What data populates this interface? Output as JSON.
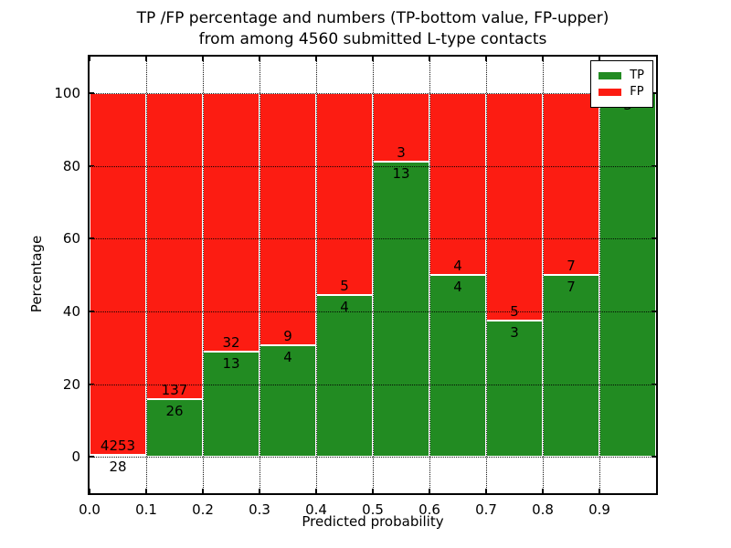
{
  "figure": {
    "title_line1": "TP /FP percentage and numbers (TP-bottom value, FP-upper)",
    "title_line2": "from among 4560 submitted L-type contacts",
    "xlabel": "Predicted probability",
    "ylabel": "Percentage"
  },
  "legend": {
    "items": [
      {
        "label": "TP",
        "color": "#228b22"
      },
      {
        "label": "FP",
        "color": "#fc1c12"
      }
    ]
  },
  "chart_data": {
    "type": "bar",
    "stacked": true,
    "title": "TP /FP percentage and numbers (TP-bottom value, FP-upper) from among 4560 submitted L-type contacts",
    "xlabel": "Predicted probability",
    "ylabel": "Percentage",
    "xlim": [
      0.0,
      1.0
    ],
    "ylim": [
      -10,
      110
    ],
    "grid": "dotted",
    "legend_position": "upper right",
    "total_submitted": 4560,
    "x_tick_labels": [
      "0.0",
      "0.1",
      "0.2",
      "0.3",
      "0.4",
      "0.5",
      "0.6",
      "0.7",
      "0.8",
      "0.9"
    ],
    "x_tick_values": [
      0.0,
      0.1,
      0.2,
      0.3,
      0.4,
      0.5,
      0.6,
      0.7,
      0.8,
      0.9
    ],
    "y_tick_labels": [
      "0",
      "20",
      "40",
      "60",
      "80",
      "100"
    ],
    "y_tick_values": [
      0,
      20,
      40,
      60,
      80,
      100
    ],
    "colors": {
      "tp": "#228b22",
      "fp": "#fc1c12"
    },
    "bin_width": 0.1,
    "series": [
      {
        "name": "TP",
        "counts": [
          28,
          26,
          13,
          4,
          4,
          13,
          4,
          3,
          7,
          3
        ]
      },
      {
        "name": "FP",
        "counts": [
          4253,
          137,
          32,
          9,
          5,
          3,
          4,
          5,
          7,
          0
        ]
      }
    ],
    "bins": [
      {
        "x0": 0.0,
        "x1": 0.1,
        "tp_pct": 0.65,
        "tp_label": "28",
        "fp_label": "4253"
      },
      {
        "x0": 0.1,
        "x1": 0.2,
        "tp_pct": 15.95,
        "tp_label": "26",
        "fp_label": "137"
      },
      {
        "x0": 0.2,
        "x1": 0.3,
        "tp_pct": 28.89,
        "tp_label": "13",
        "fp_label": "32"
      },
      {
        "x0": 0.3,
        "x1": 0.4,
        "tp_pct": 30.77,
        "tp_label": "4",
        "fp_label": "9"
      },
      {
        "x0": 0.4,
        "x1": 0.5,
        "tp_pct": 44.44,
        "tp_label": "4",
        "fp_label": "5"
      },
      {
        "x0": 0.5,
        "x1": 0.6,
        "tp_pct": 81.25,
        "tp_label": "13",
        "fp_label": "3"
      },
      {
        "x0": 0.6,
        "x1": 0.7,
        "tp_pct": 50.0,
        "tp_label": "4",
        "fp_label": "4"
      },
      {
        "x0": 0.7,
        "x1": 0.8,
        "tp_pct": 37.5,
        "tp_label": "3",
        "fp_label": "5"
      },
      {
        "x0": 0.8,
        "x1": 0.9,
        "tp_pct": 50.0,
        "tp_label": "7",
        "fp_label": "7"
      },
      {
        "x0": 0.9,
        "x1": 1.0,
        "tp_pct": 100.0,
        "tp_label": "3",
        "fp_label": null
      }
    ]
  }
}
